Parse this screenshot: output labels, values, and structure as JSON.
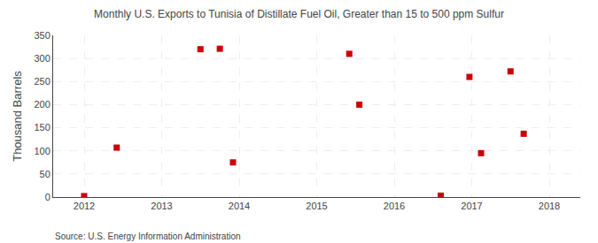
{
  "chart_data": {
    "type": "scatter",
    "title": "Monthly U.S. Exports to Tunisia of Distillate Fuel Oil, Greater than 15 to 500 ppm Sulfur",
    "ylabel": "Thousand Barrels",
    "annotations": [
      "Source: U.S. Energy Information Administration"
    ],
    "x": [
      2012.0,
      2012.42,
      2013.5,
      2013.75,
      2013.92,
      2015.42,
      2015.55,
      2016.6,
      2016.97,
      2017.12,
      2017.5,
      2017.67
    ],
    "values": [
      2,
      107,
      320,
      321,
      75,
      310,
      200,
      3,
      260,
      95,
      272,
      137
    ],
    "color": "#cc0000",
    "marker": "square",
    "xlim": [
      2011.6,
      2018.4
    ],
    "ylim": [
      0,
      350
    ],
    "xticks": [
      2012,
      2013,
      2014,
      2015,
      2016,
      2017,
      2018
    ],
    "yticks": [
      0,
      50,
      100,
      150,
      200,
      250,
      300,
      350
    ],
    "grid": true
  }
}
